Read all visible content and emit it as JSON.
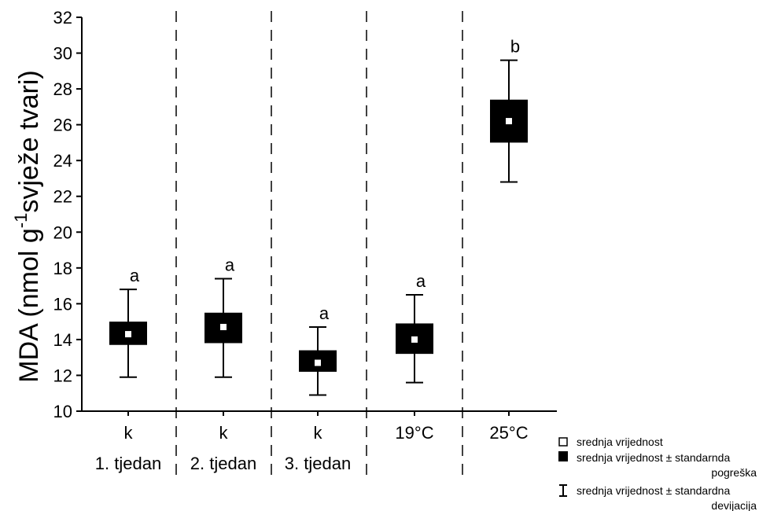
{
  "chart_data": {
    "type": "box",
    "ylabel": "MDA (nmol g",
    "ylabel_sup": "-1",
    "ylabel_tail": "svježe tvari)",
    "ylim": [
      10,
      32
    ],
    "yticks": [
      10,
      12,
      14,
      16,
      18,
      20,
      22,
      24,
      26,
      28,
      30,
      32
    ],
    "categories": [
      "k",
      "k",
      "k",
      "19°C",
      "25°C"
    ],
    "category_groups": [
      "1. tjedan",
      "2. tjedan",
      "3. tjedan",
      "",
      ""
    ],
    "significance": [
      "a",
      "a",
      "a",
      "a",
      "b"
    ],
    "series": [
      {
        "mean": 14.3,
        "se_low": 13.7,
        "se_high": 15.0,
        "sd_low": 11.9,
        "sd_high": 16.8
      },
      {
        "mean": 14.7,
        "se_low": 13.8,
        "se_high": 15.5,
        "sd_low": 11.9,
        "sd_high": 17.4
      },
      {
        "mean": 12.7,
        "se_low": 12.2,
        "se_high": 13.4,
        "sd_low": 10.9,
        "sd_high": 14.7
      },
      {
        "mean": 14.0,
        "se_low": 13.2,
        "se_high": 14.9,
        "sd_low": 11.6,
        "sd_high": 16.5
      },
      {
        "mean": 26.2,
        "se_low": 25.0,
        "se_high": 27.4,
        "sd_low": 22.8,
        "sd_high": 29.6
      }
    ],
    "legend": {
      "mean": "srednja vrijednost",
      "se_line1": "srednja vrijednost ± standarnda",
      "se_line2": "pogreška",
      "sd_line1": "srednja vrijednost ± standardna",
      "sd_line2": "devijacija"
    }
  }
}
